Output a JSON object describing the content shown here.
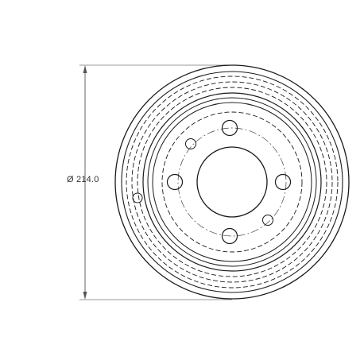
{
  "drawing": {
    "dimension_label": "Ø 214.0"
  },
  "colors": {
    "background": "#ffffff",
    "line": "#1a1a1a",
    "dim_line": "#555555"
  }
}
